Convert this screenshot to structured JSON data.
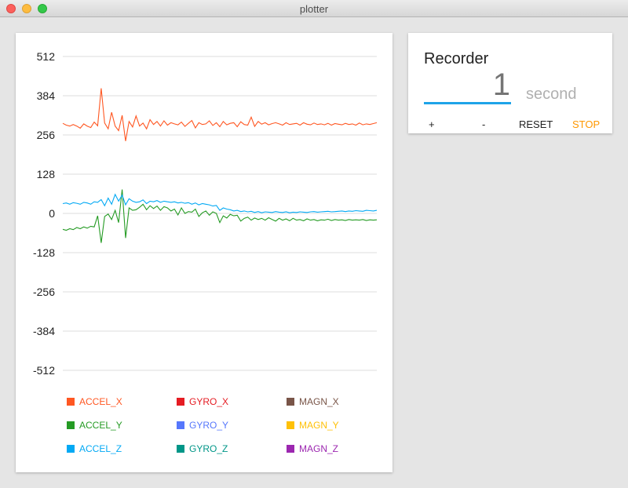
{
  "window": {
    "title": "plotter"
  },
  "chart_data": {
    "type": "line",
    "title": "",
    "xlabel": "",
    "ylabel": "",
    "ylim": [
      -512,
      512
    ],
    "yticks": [
      512,
      384,
      256,
      128,
      0,
      -128,
      -256,
      -384,
      -512
    ],
    "grid": true,
    "legend": [
      "ACCEL_X",
      "GYRO_X",
      "MAGN_X",
      "ACCEL_Y",
      "GYRO_Y",
      "MAGN_Y",
      "ACCEL_Z",
      "GYRO_Z",
      "MAGN_Z"
    ],
    "legend_colors": [
      "#ff5722",
      "#e51c23",
      "#795548",
      "#259b24",
      "#5677fc",
      "#ffc107",
      "#03a9f4",
      "#009688",
      "#9c27b0"
    ],
    "series": [
      {
        "name": "ACCEL_X",
        "color": "#ff5722",
        "values": [
          294,
          288,
          285,
          290,
          285,
          278,
          292,
          285,
          280,
          298,
          286,
          408,
          295,
          276,
          330,
          285,
          270,
          320,
          236,
          300,
          282,
          318,
          285,
          295,
          276,
          306,
          290,
          300,
          285,
          302,
          288,
          296,
          292,
          289,
          298,
          284,
          294,
          303,
          279,
          296,
          290,
          292,
          302,
          287,
          296,
          283,
          300,
          289,
          294,
          296,
          283,
          299,
          290,
          288,
          314,
          284,
          300,
          291,
          296,
          289,
          293,
          296,
          292,
          288,
          296,
          290,
          292,
          294,
          288,
          296,
          291,
          289,
          295,
          290,
          292,
          289,
          294,
          288,
          293,
          291,
          289,
          294,
          290,
          292,
          288,
          295,
          289,
          292,
          290,
          293,
          296
        ]
      },
      {
        "name": "ACCEL_Y",
        "color": "#259b24",
        "values": [
          -52,
          -55,
          -50,
          -53,
          -46,
          -50,
          -44,
          -48,
          -42,
          -44,
          -8,
          -96,
          -10,
          -2,
          -20,
          10,
          -30,
          78,
          -80,
          18,
          10,
          12,
          20,
          30,
          12,
          25,
          16,
          24,
          10,
          22,
          18,
          8,
          14,
          -5,
          18,
          0,
          6,
          4,
          14,
          -10,
          2,
          8,
          -6,
          5,
          0,
          -30,
          -8,
          -15,
          -3,
          -8,
          -6,
          -25,
          -16,
          -12,
          -22,
          -15,
          -20,
          -16,
          -22,
          -14,
          -20,
          -25,
          -16,
          -22,
          -18,
          -24,
          -16,
          -22,
          -20,
          -24,
          -18,
          -22,
          -20,
          -24,
          -21,
          -22,
          -19,
          -23,
          -20,
          -22,
          -21,
          -23,
          -20,
          -22,
          -21,
          -22,
          -20,
          -23,
          -21,
          -22,
          -21
        ]
      },
      {
        "name": "ACCEL_Z",
        "color": "#03a9f4",
        "values": [
          32,
          34,
          30,
          35,
          33,
          30,
          36,
          34,
          30,
          38,
          36,
          45,
          25,
          50,
          30,
          62,
          40,
          60,
          28,
          48,
          40,
          36,
          38,
          44,
          32,
          40,
          38,
          42,
          36,
          40,
          38,
          36,
          38,
          34,
          36,
          33,
          35,
          30,
          34,
          28,
          32,
          30,
          28,
          24,
          26,
          10,
          18,
          14,
          12,
          8,
          10,
          6,
          8,
          5,
          7,
          3,
          6,
          2,
          5,
          4,
          3,
          6,
          4,
          3,
          5,
          2,
          4,
          3,
          5,
          4,
          3,
          5,
          6,
          4,
          5,
          6,
          7,
          5,
          6,
          7,
          8,
          6,
          8,
          7,
          9,
          8,
          7,
          10,
          9,
          8,
          10
        ]
      }
    ]
  },
  "recorder": {
    "title": "Recorder",
    "value": "1",
    "unit": "second",
    "buttons": {
      "plus": "+",
      "minus": "-",
      "reset": "RESET",
      "stop": "STOP"
    },
    "accent_color": "#1ea3e8",
    "stop_color": "#ff9800"
  }
}
